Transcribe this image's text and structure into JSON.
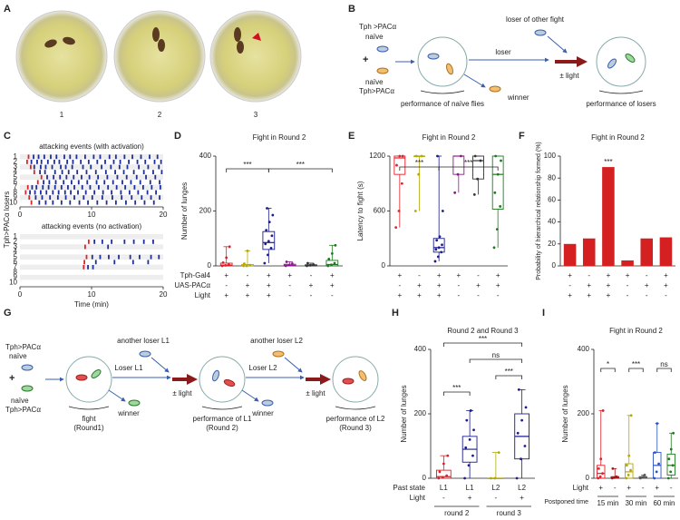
{
  "panel_labels": [
    "A",
    "B",
    "C",
    "D",
    "E",
    "F",
    "G",
    "H",
    "I"
  ],
  "photos": {
    "labels": [
      "1",
      "2",
      "3"
    ]
  },
  "diagram_b": {
    "top_genotype": "Tph >PACα",
    "top_state": "naïve",
    "plus": "+",
    "bottom_state": "naïve",
    "bottom_genotype": "Tph>PACα",
    "naive_perf": "performance of naïve flies",
    "other_loser": "loser of other fight",
    "loser": "loser",
    "winner": "winner",
    "light": "± light",
    "loser_perf": "performance of losers"
  },
  "diagram_g": {
    "top_genotype": "Tph>PACα",
    "top_state": "naïve",
    "plus": "+",
    "bottom_state": "naïve",
    "bottom_genotype": "Tph>PACα",
    "fight": "fight",
    "round1": "(Round1)",
    "another_l1": "another loser L1",
    "loser_l1": "Loser L1",
    "winner1": "winner",
    "light1": "± light",
    "perf_l1": "performance of L1",
    "round2": "(Round 2)",
    "another_l2": "another loser L2",
    "loser_l2": "Loser L2",
    "winner2": "winner",
    "light2": "± light",
    "perf_l2": "performance of L2",
    "round3": "(Round 3)"
  },
  "chart_data": [
    {
      "type": "raster",
      "ylabel": "Tph>PACα losers",
      "xlabel": "Time (min)",
      "xlim": [
        0,
        20
      ],
      "xticks": [
        0,
        10,
        20
      ],
      "color": "#1f2f9a",
      "onset_color": "#e02424",
      "rows": [
        "1",
        "2",
        "3",
        "4",
        "5",
        "6",
        "7",
        "8",
        "9",
        "10"
      ],
      "panels": [
        {
          "title": "attacking events (with activation)",
          "events": [
            [
              1.2,
              1.9,
              2.6,
              3.4,
              4.3,
              5.1,
              6.2,
              7.0,
              7.9,
              9.1,
              10.3,
              11.2,
              12.5,
              13.4,
              14.6,
              15.7,
              16.9,
              18.1,
              19.2
            ],
            [
              1.0,
              1.6,
              2.4,
              3.0,
              3.9,
              4.8,
              5.5,
              6.6,
              7.4,
              8.5,
              9.6,
              10.8,
              11.9,
              13.1,
              14.0,
              15.2,
              16.4,
              17.5,
              18.8,
              19.7
            ],
            [
              1.5,
              2.0,
              2.9,
              3.6,
              4.5,
              5.7,
              6.4,
              7.3,
              8.8,
              9.9,
              11.4,
              12.7,
              13.9,
              15.0,
              16.6,
              17.9,
              19.4
            ],
            [
              2.0,
              2.8,
              3.5,
              4.9,
              5.9,
              6.8,
              8.0,
              9.3,
              10.6,
              12.0,
              13.3,
              14.5,
              15.9,
              17.3,
              18.6,
              19.8
            ],
            [
              3.0,
              3.8,
              4.7,
              5.6,
              6.5,
              7.5,
              8.6,
              9.7,
              10.9,
              12.2,
              13.6,
              14.9,
              16.3,
              17.6,
              18.9
            ],
            [
              2.5,
              3.3,
              4.1,
              5.0,
              6.1,
              7.2,
              8.2,
              9.4,
              10.7,
              11.8,
              13.0,
              14.3,
              15.5,
              16.8,
              18.2,
              19.5
            ],
            [
              1.1,
              1.7,
              2.3,
              3.2,
              4.0,
              4.9,
              5.8,
              6.7,
              7.6,
              8.7,
              9.8,
              11.0,
              12.3,
              13.5,
              14.7,
              16.0,
              17.2,
              18.4,
              19.6
            ],
            [
              0.8,
              1.4,
              2.1,
              2.9,
              3.7,
              4.6,
              5.4,
              6.3,
              7.1,
              8.1,
              9.2,
              10.4,
              11.6,
              12.8,
              14.1,
              15.3,
              16.5,
              17.8,
              19.0
            ],
            [
              1.3,
              2.2,
              3.1,
              4.2,
              5.3,
              6.4,
              7.6,
              8.9,
              10.1,
              11.5,
              12.9,
              14.2,
              15.6,
              17.0,
              18.3,
              19.5
            ],
            [
              1.6,
              2.7,
              3.6,
              4.6,
              5.8,
              7.0,
              8.3,
              9.5,
              10.8,
              12.1,
              13.4,
              14.8,
              16.1,
              17.4,
              18.7
            ]
          ]
        },
        {
          "title": "attacking events (no activation)",
          "events": [
            [],
            [
              9.6,
              10.4,
              11.5,
              12.8,
              14.6,
              15.9,
              17.3,
              18.6
            ],
            [
              9.1,
              12.3
            ],
            [],
            [
              9.3,
              10.1,
              11.2,
              12.4,
              13.8,
              15.4,
              16.7,
              18.3,
              19.4
            ],
            [
              9.0,
              10.6,
              13.2,
              15.8,
              17.9
            ],
            [
              8.9,
              9.5,
              10.2
            ],
            [],
            [],
            []
          ]
        }
      ]
    },
    {
      "type": "box",
      "title": "Fight in Round 2",
      "ylabel": "Number of lunges",
      "ylim": [
        0,
        400
      ],
      "yticks": [
        0,
        200,
        400
      ],
      "groups": [
        {
          "color": "#e0202a",
          "q1": 0,
          "median": 3,
          "q3": 10,
          "low": 0,
          "high": 70,
          "points": [
            0,
            2,
            5,
            12,
            30,
            70
          ]
        },
        {
          "color": "#b5a800",
          "q1": 0,
          "median": 0,
          "q3": 5,
          "low": 0,
          "high": 55,
          "points": [
            0,
            0,
            3,
            8,
            55
          ]
        },
        {
          "color": "#1c1c8c",
          "q1": 60,
          "median": 85,
          "q3": 125,
          "low": 10,
          "high": 210,
          "points": [
            10,
            40,
            65,
            80,
            90,
            110,
            130,
            160,
            185,
            210
          ]
        },
        {
          "color": "#8a1a8a",
          "q1": 0,
          "median": 2,
          "q3": 6,
          "low": 0,
          "high": 15,
          "points": [
            0,
            3,
            8,
            15
          ]
        },
        {
          "color": "#333333",
          "q1": 0,
          "median": 1,
          "q3": 4,
          "low": 0,
          "high": 10,
          "points": [
            0,
            2,
            5,
            10
          ]
        },
        {
          "color": "#1f7a1f",
          "q1": 0,
          "median": 5,
          "q3": 20,
          "low": 0,
          "high": 75,
          "points": [
            0,
            4,
            10,
            25,
            45,
            75
          ]
        }
      ],
      "rows": [
        {
          "label": "Tph-Gal4",
          "values": [
            "+",
            "-",
            "+",
            "+",
            "-",
            "+"
          ]
        },
        {
          "label": "UAS-PACα",
          "values": [
            "-",
            "+",
            "+",
            "-",
            "+",
            "+"
          ]
        },
        {
          "label": "Light",
          "values": [
            "+",
            "+",
            "+",
            "-",
            "-",
            "-"
          ]
        }
      ],
      "significance": [
        "***",
        "***"
      ]
    },
    {
      "type": "box",
      "title": "Fight in Round 2",
      "ylabel": "Latency to fight (s)",
      "ylim": [
        0,
        1200
      ],
      "yticks": [
        0,
        600,
        1200
      ],
      "groups": [
        {
          "color": "#e0202a",
          "q1": 1000,
          "median": 1180,
          "q3": 1200,
          "low": 420,
          "high": 1200,
          "points": [
            420,
            600,
            900,
            1100,
            1200,
            1200
          ]
        },
        {
          "color": "#b5a800",
          "q1": 1200,
          "median": 1200,
          "q3": 1200,
          "low": 600,
          "high": 1200,
          "points": [
            600,
            1000,
            1200,
            1200
          ]
        },
        {
          "color": "#1c1c8c",
          "q1": 150,
          "median": 200,
          "q3": 300,
          "low": 50,
          "high": 1200,
          "points": [
            50,
            100,
            150,
            180,
            200,
            230,
            280,
            320,
            600,
            1200
          ]
        },
        {
          "color": "#8a1a8a",
          "q1": 1000,
          "median": 1200,
          "q3": 1200,
          "low": 800,
          "high": 1200,
          "points": [
            800,
            1000,
            1200
          ]
        },
        {
          "color": "#333333",
          "q1": 950,
          "median": 1150,
          "q3": 1200,
          "low": 780,
          "high": 1200,
          "points": [
            780,
            950,
            1150,
            1200
          ]
        },
        {
          "color": "#1f7a1f",
          "q1": 620,
          "median": 1000,
          "q3": 1200,
          "low": 200,
          "high": 1200,
          "points": [
            200,
            400,
            650,
            800,
            1000,
            1150,
            1200
          ]
        }
      ],
      "rows": [
        {
          "values": [
            "+",
            "-",
            "+",
            "+",
            "-",
            "+"
          ]
        },
        {
          "values": [
            "-",
            "+",
            "+",
            "-",
            "+",
            "+"
          ]
        },
        {
          "values": [
            "+",
            "+",
            "+",
            "-",
            "-",
            "-"
          ]
        }
      ],
      "significance": [
        "***",
        "***"
      ]
    },
    {
      "type": "bar",
      "title": "Fight in Round 2",
      "ylabel": "Probability of hierarchical relationship formed (%)",
      "ylim": [
        0,
        100
      ],
      "yticks": [
        0,
        20,
        40,
        60,
        80,
        100
      ],
      "color": "#d42020",
      "values": [
        20,
        25,
        90,
        5,
        25,
        26
      ],
      "rows": [
        {
          "values": [
            "+",
            "-",
            "+",
            "+",
            "-",
            "+"
          ]
        },
        {
          "values": [
            "-",
            "+",
            "+",
            "-",
            "+",
            "+"
          ]
        },
        {
          "values": [
            "+",
            "+",
            "+",
            "-",
            "-",
            "-"
          ]
        }
      ],
      "significance": [
        "***"
      ]
    },
    {
      "type": "box",
      "title": "Round 2 and Round 3",
      "ylabel": "Number of lunges",
      "ylim": [
        0,
        400
      ],
      "yticks": [
        0,
        200,
        400
      ],
      "groups": [
        {
          "color": "#e0202a",
          "q1": 0,
          "median": 5,
          "q3": 25,
          "low": 0,
          "high": 70,
          "points": [
            0,
            3,
            8,
            20,
            45,
            70
          ]
        },
        {
          "color": "#1c1c8c",
          "q1": 50,
          "median": 90,
          "q3": 130,
          "low": 0,
          "high": 210,
          "points": [
            0,
            40,
            70,
            95,
            120,
            150,
            180,
            210
          ]
        },
        {
          "color": "#b5a800",
          "q1": 0,
          "median": 0,
          "q3": 0,
          "low": 0,
          "high": 80,
          "points": [
            0,
            0,
            80
          ]
        },
        {
          "color": "#1c1c8c",
          "q1": 60,
          "median": 130,
          "q3": 200,
          "low": 0,
          "high": 275,
          "points": [
            0,
            60,
            100,
            140,
            180,
            220,
            275
          ]
        }
      ],
      "rows": [
        {
          "label": "Past state",
          "values": [
            "L1",
            "L1",
            "L2",
            "L2"
          ]
        },
        {
          "label": "Light",
          "values": [
            "-",
            "+",
            "-",
            "+"
          ]
        }
      ],
      "group_labels": {
        "values": [
          "round 2",
          "round 3"
        ]
      },
      "significance": [
        "***",
        "***",
        "ns",
        "***"
      ]
    },
    {
      "type": "box",
      "title": "Fight in Round 2",
      "ylabel": "Number of lunges",
      "ylim": [
        0,
        400
      ],
      "yticks": [
        0,
        200,
        400
      ],
      "groups": [
        {
          "color": "#e0202a",
          "q1": 0,
          "median": 15,
          "q3": 40,
          "low": 0,
          "high": 210,
          "points": [
            0,
            5,
            15,
            30,
            60,
            210
          ]
        },
        {
          "color": "#a01818",
          "q1": 0,
          "median": 2,
          "q3": 5,
          "low": 0,
          "high": 30,
          "points": [
            0,
            2,
            5,
            30
          ]
        },
        {
          "color": "#b5a800",
          "q1": 0,
          "median": 20,
          "q3": 45,
          "low": 0,
          "high": 195,
          "points": [
            0,
            10,
            25,
            40,
            70,
            195
          ]
        },
        {
          "color": "#555555",
          "q1": 0,
          "median": 2,
          "q3": 5,
          "low": 0,
          "high": 10,
          "points": [
            0,
            3,
            10
          ]
        },
        {
          "color": "#3050c0",
          "q1": 0,
          "median": 40,
          "q3": 80,
          "low": 0,
          "high": 170,
          "points": [
            0,
            20,
            45,
            80,
            170
          ]
        },
        {
          "color": "#1f7a1f",
          "q1": 10,
          "median": 40,
          "q3": 75,
          "low": 0,
          "high": 140,
          "points": [
            0,
            20,
            40,
            60,
            90,
            140
          ]
        }
      ],
      "rows": [
        {
          "label": "Light",
          "values": [
            "+",
            "-",
            "+",
            "-",
            "+",
            "-"
          ]
        }
      ],
      "group_labels": {
        "label": "Postponed time",
        "values": [
          "15 min",
          "30 min",
          "60 min"
        ]
      },
      "significance": [
        "*",
        "***",
        "ns"
      ]
    }
  ]
}
